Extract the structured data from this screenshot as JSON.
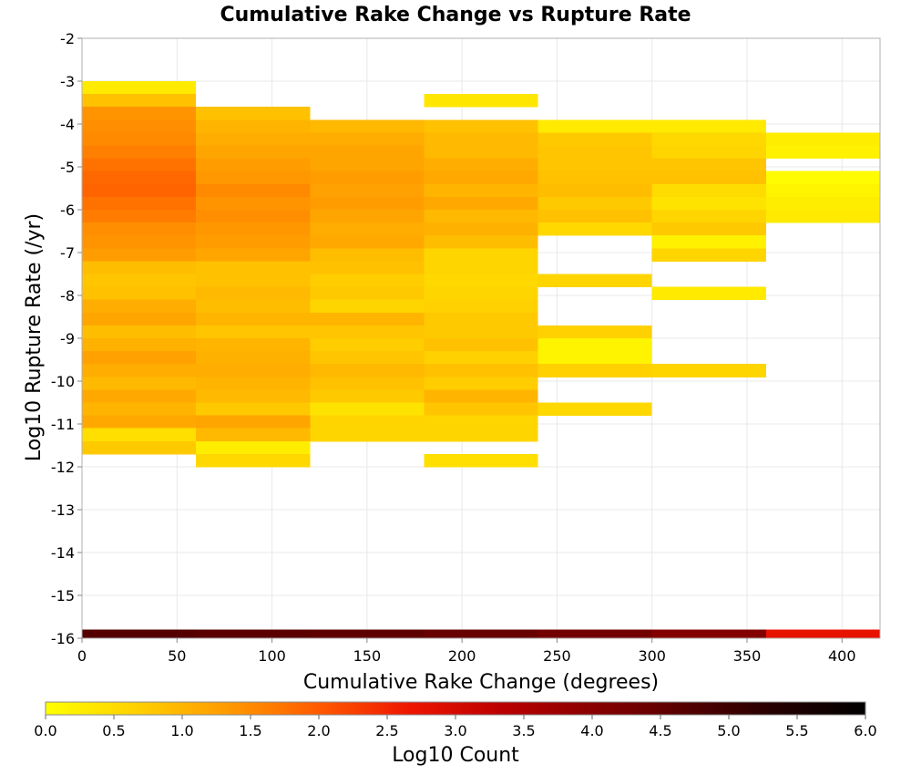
{
  "chart_data": {
    "type": "heatmap",
    "title": "Cumulative Rake Change vs Rupture Rate",
    "xlabel": "Cumulative Rake Change (degrees)",
    "ylabel": "Log10 Rupture Rate (/yr)",
    "xlim": [
      0,
      420
    ],
    "ylim": [
      -16,
      -2
    ],
    "x_ticks": [
      "0",
      "50",
      "100",
      "150",
      "200",
      "250",
      "300",
      "350",
      "400"
    ],
    "y_ticks": [
      "-2",
      "-3",
      "-4",
      "-5",
      "-6",
      "-7",
      "-8",
      "-9",
      "-10",
      "-11",
      "-12",
      "-13",
      "-14",
      "-15",
      "-16"
    ],
    "x_tick_values": [
      0,
      50,
      100,
      150,
      200,
      250,
      300,
      350,
      400
    ],
    "y_tick_values": [
      -2,
      -3,
      -4,
      -5,
      -6,
      -7,
      -8,
      -9,
      -10,
      -11,
      -12,
      -13,
      -14,
      -15,
      -16
    ],
    "grid": true,
    "x_bin_width": 60,
    "y_bin_height": 0.3,
    "colorbar": {
      "label": "Log10 Count",
      "range": [
        0,
        6
      ],
      "ticks": [
        "0.0",
        "0.5",
        "1.0",
        "1.5",
        "2.0",
        "2.5",
        "3.0",
        "3.5",
        "4.0",
        "4.5",
        "5.0",
        "5.5",
        "6.0"
      ],
      "tick_values": [
        0,
        0.5,
        1,
        1.5,
        2,
        2.5,
        3,
        3.5,
        4,
        4.5,
        5,
        5.5,
        6
      ],
      "colors": [
        "#ffff00",
        "#ffd000",
        "#ff9a00",
        "#ff5a00",
        "#ee1500",
        "#bb0000",
        "#8a0000",
        "#560000",
        "#250000",
        "#000000"
      ]
    },
    "columns": [
      {
        "x": 0,
        "cells": [
          [
            -3.15,
            0.3
          ],
          [
            -3.45,
            0.85
          ],
          [
            -3.75,
            1.4
          ],
          [
            -4.05,
            1.45
          ],
          [
            -4.35,
            1.5
          ],
          [
            -4.65,
            1.6
          ],
          [
            -4.95,
            1.75
          ],
          [
            -5.25,
            1.85
          ],
          [
            -5.55,
            1.9
          ],
          [
            -5.85,
            1.75
          ],
          [
            -6.15,
            1.65
          ],
          [
            -6.45,
            1.45
          ],
          [
            -6.75,
            1.4
          ],
          [
            -7.05,
            1.3
          ],
          [
            -7.35,
            0.9
          ],
          [
            -7.65,
            0.8
          ],
          [
            -7.95,
            0.85
          ],
          [
            -8.25,
            1.1
          ],
          [
            -8.55,
            1.2
          ],
          [
            -8.85,
            0.9
          ],
          [
            -9.15,
            1.05
          ],
          [
            -9.45,
            1.25
          ],
          [
            -9.75,
            1.1
          ],
          [
            -10.05,
            0.95
          ],
          [
            -10.35,
            1.15
          ],
          [
            -10.65,
            1.0
          ],
          [
            -10.95,
            1.15
          ],
          [
            -11.25,
            0.45
          ],
          [
            -11.55,
            0.75
          ],
          [
            -15.95,
            4.7
          ]
        ]
      },
      {
        "x": 60,
        "cells": [
          [
            -3.75,
            0.85
          ],
          [
            -4.05,
            1.0
          ],
          [
            -4.35,
            1.1
          ],
          [
            -4.65,
            1.2
          ],
          [
            -4.95,
            1.3
          ],
          [
            -5.25,
            1.35
          ],
          [
            -5.55,
            1.5
          ],
          [
            -5.85,
            1.4
          ],
          [
            -6.15,
            1.45
          ],
          [
            -6.45,
            1.35
          ],
          [
            -6.75,
            1.3
          ],
          [
            -7.05,
            1.2
          ],
          [
            -7.35,
            0.85
          ],
          [
            -7.65,
            0.85
          ],
          [
            -7.95,
            0.95
          ],
          [
            -8.25,
            0.9
          ],
          [
            -8.55,
            1.0
          ],
          [
            -8.85,
            0.8
          ],
          [
            -9.15,
            1.0
          ],
          [
            -9.45,
            1.05
          ],
          [
            -9.75,
            1.1
          ],
          [
            -10.05,
            1.0
          ],
          [
            -10.35,
            0.95
          ],
          [
            -10.65,
            0.75
          ],
          [
            -10.95,
            1.2
          ],
          [
            -11.25,
            0.95
          ],
          [
            -11.55,
            0.25
          ],
          [
            -11.85,
            0.55
          ],
          [
            -15.95,
            4.6
          ]
        ]
      },
      {
        "x": 120,
        "cells": [
          [
            -4.05,
            0.95
          ],
          [
            -4.35,
            1.1
          ],
          [
            -4.65,
            1.2
          ],
          [
            -4.95,
            1.2
          ],
          [
            -5.25,
            1.3
          ],
          [
            -5.55,
            1.25
          ],
          [
            -5.85,
            1.3
          ],
          [
            -6.15,
            1.2
          ],
          [
            -6.45,
            1.1
          ],
          [
            -6.75,
            1.15
          ],
          [
            -7.05,
            0.9
          ],
          [
            -7.35,
            0.85
          ],
          [
            -7.65,
            0.7
          ],
          [
            -7.95,
            0.75
          ],
          [
            -8.25,
            0.6
          ],
          [
            -8.55,
            1.0
          ],
          [
            -8.85,
            0.8
          ],
          [
            -9.15,
            0.7
          ],
          [
            -9.45,
            0.8
          ],
          [
            -9.75,
            0.95
          ],
          [
            -10.05,
            0.85
          ],
          [
            -10.35,
            0.75
          ],
          [
            -10.65,
            0.4
          ],
          [
            -10.95,
            0.6
          ],
          [
            -11.25,
            0.6
          ],
          [
            -15.95,
            4.55
          ]
        ]
      },
      {
        "x": 180,
        "cells": [
          [
            -3.45,
            0.35
          ],
          [
            -4.05,
            0.85
          ],
          [
            -4.35,
            0.95
          ],
          [
            -4.65,
            0.95
          ],
          [
            -4.95,
            1.1
          ],
          [
            -5.25,
            1.15
          ],
          [
            -5.55,
            1.0
          ],
          [
            -5.85,
            1.15
          ],
          [
            -6.15,
            0.95
          ],
          [
            -6.45,
            1.05
          ],
          [
            -6.75,
            0.9
          ],
          [
            -7.05,
            0.6
          ],
          [
            -7.35,
            0.6
          ],
          [
            -7.65,
            0.55
          ],
          [
            -7.95,
            0.6
          ],
          [
            -8.25,
            0.65
          ],
          [
            -8.55,
            0.75
          ],
          [
            -8.85,
            0.75
          ],
          [
            -9.15,
            0.85
          ],
          [
            -9.45,
            0.65
          ],
          [
            -9.75,
            0.85
          ],
          [
            -10.05,
            0.7
          ],
          [
            -10.35,
            1.0
          ],
          [
            -10.65,
            0.8
          ],
          [
            -10.95,
            0.6
          ],
          [
            -11.25,
            0.6
          ],
          [
            -11.85,
            0.45
          ],
          [
            -15.95,
            4.45
          ]
        ]
      },
      {
        "x": 240,
        "cells": [
          [
            -4.05,
            0.3
          ],
          [
            -4.35,
            0.75
          ],
          [
            -4.65,
            0.8
          ],
          [
            -4.95,
            0.8
          ],
          [
            -5.25,
            0.85
          ],
          [
            -5.55,
            0.9
          ],
          [
            -5.85,
            0.75
          ],
          [
            -6.15,
            0.85
          ],
          [
            -6.45,
            0.55
          ],
          [
            -7.65,
            0.6
          ],
          [
            -8.85,
            0.65
          ],
          [
            -9.15,
            0.15
          ],
          [
            -9.45,
            0.15
          ],
          [
            -9.75,
            0.65
          ],
          [
            -10.65,
            0.55
          ],
          [
            -15.95,
            4.3
          ]
        ]
      },
      {
        "x": 300,
        "cells": [
          [
            -4.05,
            0.3
          ],
          [
            -4.35,
            0.55
          ],
          [
            -4.65,
            0.6
          ],
          [
            -4.95,
            0.8
          ],
          [
            -5.25,
            0.85
          ],
          [
            -5.55,
            0.5
          ],
          [
            -5.85,
            0.4
          ],
          [
            -6.15,
            0.6
          ],
          [
            -6.45,
            0.75
          ],
          [
            -6.75,
            0.2
          ],
          [
            -7.05,
            0.6
          ],
          [
            -7.95,
            0.3
          ],
          [
            -9.75,
            0.6
          ],
          [
            -15.95,
            4.1
          ]
        ]
      },
      {
        "x": 360,
        "cells": [
          [
            -4.35,
            0.25
          ],
          [
            -4.65,
            0.2
          ],
          [
            -5.25,
            0.05
          ],
          [
            -5.55,
            0.15
          ],
          [
            -5.85,
            0.25
          ],
          [
            -6.15,
            0.3
          ],
          [
            -15.95,
            2.75
          ]
        ]
      }
    ]
  }
}
